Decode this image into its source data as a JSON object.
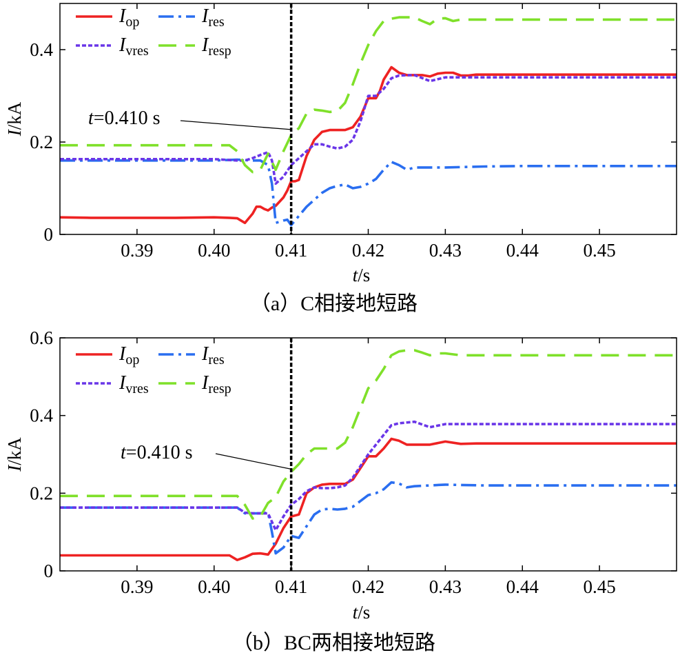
{
  "chart_data": [
    {
      "type": "line",
      "caption": "（a）C相接地短路",
      "ylabel_var": "I",
      "ylabel_unit": "/kA",
      "xlabel_var": "t",
      "xlabel_unit": "/s",
      "xlim": [
        0.38,
        0.46
      ],
      "ylim": [
        0,
        0.5
      ],
      "xticks": [
        0.39,
        0.4,
        0.41,
        0.42,
        0.43,
        0.44,
        0.45
      ],
      "xtick_labels": [
        "0.39",
        "0.40",
        "0.41",
        "0.42",
        "0.43",
        "0.44",
        "0.45"
      ],
      "yticks": [
        0,
        0.2,
        0.4
      ],
      "ytick_labels": [
        "0",
        "0.2",
        "0.4"
      ],
      "marker_line_x": 0.41,
      "annotation": {
        "text_var": "t",
        "text_rest": "=0.410 s",
        "target": [
          0.41,
          0.227
        ]
      },
      "series": [
        {
          "name": "I",
          "sub": "op",
          "color": "#ee2222",
          "dash": "",
          "width": 3.6,
          "x": [
            0.38,
            0.384,
            0.395,
            0.4,
            0.402,
            0.403,
            0.404,
            0.4045,
            0.405,
            0.4055,
            0.406,
            0.4065,
            0.407,
            0.4075,
            0.408,
            0.409,
            0.4095,
            0.41,
            0.4105,
            0.411,
            0.412,
            0.413,
            0.414,
            0.415,
            0.416,
            0.417,
            0.418,
            0.419,
            0.42,
            0.421,
            0.4215,
            0.422,
            0.423,
            0.424,
            0.425,
            0.426,
            0.427,
            0.428,
            0.429,
            0.43,
            0.431,
            0.432,
            0.433,
            0.434,
            0.44,
            0.45,
            0.46
          ],
          "y": [
            0.037,
            0.036,
            0.036,
            0.037,
            0.036,
            0.035,
            0.025,
            0.035,
            0.045,
            0.06,
            0.06,
            0.055,
            0.052,
            0.058,
            0.062,
            0.08,
            0.095,
            0.115,
            0.115,
            0.118,
            0.17,
            0.205,
            0.222,
            0.226,
            0.226,
            0.226,
            0.232,
            0.255,
            0.295,
            0.295,
            0.31,
            0.335,
            0.362,
            0.35,
            0.345,
            0.345,
            0.345,
            0.342,
            0.348,
            0.35,
            0.35,
            0.344,
            0.344,
            0.346,
            0.346,
            0.346,
            0.346
          ]
        },
        {
          "name": "I",
          "sub": "res",
          "color": "#2a6ef0",
          "dash": "22,7,4,7",
          "width": 3.6,
          "x": [
            0.38,
            0.4,
            0.403,
            0.405,
            0.406,
            0.407,
            0.4075,
            0.408,
            0.409,
            0.4095,
            0.41,
            0.411,
            0.412,
            0.413,
            0.414,
            0.415,
            0.416,
            0.417,
            0.418,
            0.419,
            0.42,
            0.421,
            0.422,
            0.423,
            0.424,
            0.425,
            0.426,
            0.43,
            0.435,
            0.44,
            0.45,
            0.46
          ],
          "y": [
            0.16,
            0.16,
            0.162,
            0.16,
            0.16,
            0.15,
            0.11,
            0.025,
            0.03,
            0.032,
            0.02,
            0.04,
            0.06,
            0.075,
            0.09,
            0.1,
            0.105,
            0.108,
            0.1,
            0.103,
            0.11,
            0.12,
            0.14,
            0.157,
            0.15,
            0.14,
            0.145,
            0.145,
            0.147,
            0.148,
            0.148,
            0.148
          ]
        },
        {
          "name": "I",
          "sub": "vres",
          "color": "#6a36e8",
          "dash": "6,3",
          "width": 3.6,
          "x": [
            0.38,
            0.4,
            0.403,
            0.404,
            0.405,
            0.406,
            0.407,
            0.4075,
            0.408,
            0.409,
            0.41,
            0.411,
            0.412,
            0.413,
            0.414,
            0.415,
            0.416,
            0.417,
            0.418,
            0.419,
            0.42,
            0.421,
            0.422,
            0.423,
            0.424,
            0.426,
            0.428,
            0.43,
            0.432,
            0.434,
            0.44,
            0.45,
            0.46
          ],
          "y": [
            0.163,
            0.163,
            0.16,
            0.16,
            0.165,
            0.172,
            0.178,
            0.16,
            0.11,
            0.125,
            0.15,
            0.165,
            0.18,
            0.195,
            0.195,
            0.19,
            0.186,
            0.19,
            0.205,
            0.245,
            0.3,
            0.3,
            0.315,
            0.338,
            0.344,
            0.345,
            0.332,
            0.34,
            0.34,
            0.34,
            0.34,
            0.34,
            0.34
          ]
        },
        {
          "name": "I",
          "sub": "resp",
          "color": "#7fe02a",
          "dash": "26,13",
          "width": 3.6,
          "x": [
            0.38,
            0.402,
            0.403,
            0.404,
            0.405,
            0.406,
            0.407,
            0.408,
            0.409,
            0.41,
            0.411,
            0.412,
            0.413,
            0.414,
            0.415,
            0.416,
            0.417,
            0.418,
            0.419,
            0.42,
            0.421,
            0.422,
            0.423,
            0.424,
            0.425,
            0.426,
            0.427,
            0.428,
            0.429,
            0.43,
            0.431,
            0.432,
            0.44,
            0.45,
            0.46
          ],
          "y": [
            0.193,
            0.193,
            0.18,
            0.15,
            0.135,
            0.14,
            0.175,
            0.14,
            0.18,
            0.215,
            0.23,
            0.262,
            0.27,
            0.268,
            0.265,
            0.267,
            0.285,
            0.325,
            0.37,
            0.41,
            0.44,
            0.462,
            0.467,
            0.47,
            0.47,
            0.47,
            0.462,
            0.455,
            0.467,
            0.468,
            0.462,
            0.465,
            0.465,
            0.465,
            0.465
          ]
        }
      ]
    },
    {
      "type": "line",
      "caption": "（b）BC两相接地短路",
      "ylabel_var": "I",
      "ylabel_unit": "/kA",
      "xlabel_var": "t",
      "xlabel_unit": "/s",
      "xlim": [
        0.38,
        0.46
      ],
      "ylim": [
        0,
        0.6
      ],
      "xticks": [
        0.39,
        0.4,
        0.41,
        0.42,
        0.43,
        0.44,
        0.45
      ],
      "xtick_labels": [
        "0.39",
        "0.40",
        "0.41",
        "0.42",
        "0.43",
        "0.44",
        "0.45"
      ],
      "yticks": [
        0,
        0.2,
        0.4,
        0.6
      ],
      "ytick_labels": [
        "0",
        "0.2",
        "0.4",
        "0.6"
      ],
      "marker_line_x": 0.41,
      "annotation": {
        "text_var": "t",
        "text_rest": "=0.410 s",
        "target": [
          0.41,
          0.262
        ]
      },
      "series": [
        {
          "name": "I",
          "sub": "op",
          "color": "#ee2222",
          "dash": "",
          "width": 3.6,
          "x": [
            0.38,
            0.402,
            0.403,
            0.404,
            0.405,
            0.406,
            0.407,
            0.408,
            0.409,
            0.41,
            0.411,
            0.412,
            0.413,
            0.414,
            0.415,
            0.416,
            0.417,
            0.418,
            0.419,
            0.42,
            0.421,
            0.422,
            0.423,
            0.424,
            0.425,
            0.426,
            0.428,
            0.43,
            0.432,
            0.434,
            0.44,
            0.45,
            0.46
          ],
          "y": [
            0.04,
            0.04,
            0.028,
            0.035,
            0.044,
            0.045,
            0.042,
            0.07,
            0.11,
            0.14,
            0.145,
            0.2,
            0.215,
            0.222,
            0.224,
            0.224,
            0.224,
            0.235,
            0.265,
            0.295,
            0.295,
            0.315,
            0.34,
            0.335,
            0.325,
            0.325,
            0.325,
            0.333,
            0.327,
            0.328,
            0.328,
            0.328,
            0.328
          ]
        },
        {
          "name": "I",
          "sub": "res",
          "color": "#2a6ef0",
          "dash": "22,7,4,7",
          "width": 3.6,
          "x": [
            0.38,
            0.403,
            0.404,
            0.406,
            0.407,
            0.4075,
            0.408,
            0.409,
            0.41,
            0.411,
            0.412,
            0.413,
            0.414,
            0.415,
            0.416,
            0.417,
            0.418,
            0.419,
            0.42,
            0.421,
            0.422,
            0.423,
            0.424,
            0.425,
            0.426,
            0.43,
            0.435,
            0.44,
            0.45,
            0.46
          ],
          "y": [
            0.163,
            0.163,
            0.148,
            0.148,
            0.15,
            0.1,
            0.045,
            0.06,
            0.09,
            0.085,
            0.115,
            0.145,
            0.158,
            0.16,
            0.158,
            0.16,
            0.165,
            0.18,
            0.195,
            0.2,
            0.21,
            0.228,
            0.225,
            0.215,
            0.218,
            0.222,
            0.22,
            0.22,
            0.22,
            0.22
          ]
        },
        {
          "name": "I",
          "sub": "vres",
          "color": "#6a36e8",
          "dash": "6,3",
          "width": 3.6,
          "x": [
            0.38,
            0.403,
            0.404,
            0.405,
            0.406,
            0.407,
            0.408,
            0.409,
            0.41,
            0.411,
            0.412,
            0.413,
            0.414,
            0.415,
            0.416,
            0.417,
            0.418,
            0.419,
            0.42,
            0.421,
            0.422,
            0.423,
            0.424,
            0.426,
            0.428,
            0.43,
            0.432,
            0.44,
            0.45,
            0.46
          ],
          "y": [
            0.163,
            0.163,
            0.15,
            0.148,
            0.148,
            0.148,
            0.105,
            0.14,
            0.17,
            0.185,
            0.205,
            0.215,
            0.213,
            0.213,
            0.215,
            0.22,
            0.24,
            0.27,
            0.3,
            0.325,
            0.35,
            0.375,
            0.38,
            0.384,
            0.37,
            0.378,
            0.378,
            0.378,
            0.378,
            0.378
          ]
        },
        {
          "name": "I",
          "sub": "resp",
          "color": "#7fe02a",
          "dash": "26,13",
          "width": 3.6,
          "x": [
            0.38,
            0.403,
            0.404,
            0.405,
            0.406,
            0.407,
            0.408,
            0.409,
            0.41,
            0.411,
            0.412,
            0.413,
            0.414,
            0.415,
            0.416,
            0.417,
            0.418,
            0.419,
            0.42,
            0.421,
            0.422,
            0.423,
            0.424,
            0.425,
            0.426,
            0.427,
            0.428,
            0.429,
            0.43,
            0.432,
            0.44,
            0.45,
            0.46
          ],
          "y": [
            0.193,
            0.193,
            0.17,
            0.135,
            0.14,
            0.175,
            0.19,
            0.23,
            0.255,
            0.275,
            0.3,
            0.315,
            0.315,
            0.315,
            0.315,
            0.33,
            0.37,
            0.42,
            0.47,
            0.49,
            0.52,
            0.555,
            0.565,
            0.568,
            0.568,
            0.562,
            0.555,
            0.56,
            0.56,
            0.555,
            0.555,
            0.555,
            0.555
          ]
        }
      ]
    }
  ]
}
